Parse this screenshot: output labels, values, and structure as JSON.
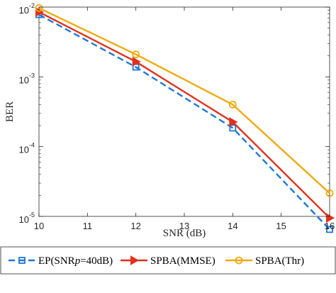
{
  "chart_data": {
    "type": "line",
    "xlabel": "SNR (dB)",
    "ylabel": "BER",
    "x": [
      10,
      12,
      14,
      16
    ],
    "xlim": [
      10,
      16
    ],
    "ylim": [
      1e-05,
      0.01
    ],
    "yscale": "log",
    "grid": false,
    "legend_position": "bottom",
    "x_ticks": [
      10,
      11,
      12,
      13,
      14,
      15,
      16
    ],
    "y_ticks": [
      {
        "value": 1e-05,
        "base": "10",
        "exp": "-5"
      },
      {
        "value": 0.0001,
        "base": "10",
        "exp": "-4"
      },
      {
        "value": 0.001,
        "base": "10",
        "exp": "-3"
      },
      {
        "value": 0.01,
        "base": "10",
        "exp": "-2"
      }
    ],
    "series": [
      {
        "name_pre": "EP(SNR",
        "name_italic": "p",
        "name_post": "=40dB)",
        "values": [
          0.0078,
          0.00138,
          0.000185,
          6.5e-06
        ],
        "color": "#1f77d4",
        "dash": "dashed",
        "marker": "square"
      },
      {
        "name_pre": "SPBA(MMSE)",
        "name_italic": "",
        "name_post": "",
        "values": [
          0.0085,
          0.00165,
          0.000225,
          9.5e-06
        ],
        "color": "#e0311d",
        "dash": "solid",
        "marker": "triangle-right"
      },
      {
        "name_pre": "SPBA(Thr)",
        "name_italic": "",
        "name_post": "",
        "values": [
          0.0097,
          0.0021,
          0.0004,
          2.15e-05
        ],
        "color": "#f2a90f",
        "dash": "solid",
        "marker": "circle"
      }
    ]
  }
}
